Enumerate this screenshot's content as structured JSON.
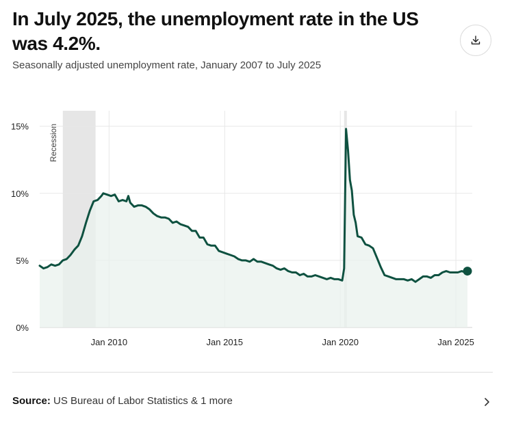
{
  "title": "In July 2025, the unemployment rate in the US was 4.2%.",
  "subtitle": "Seasonally adjusted unemployment rate, January 2007 to July 2025",
  "download_icon": "download-icon",
  "source": {
    "label": "Source:",
    "text": "US Bureau of Labor Statistics & 1 more",
    "chevron_icon": "chevron-right-icon"
  },
  "colors": {
    "line": "#0e5140",
    "area": "#e9f1ee",
    "recession": "#e6e6e6",
    "grid": "#e7e7e7"
  },
  "chart_data": {
    "type": "area",
    "title": "In July 2025, the unemployment rate in the US was 4.2%.",
    "subtitle": "Seasonally adjusted unemployment rate, January 2007 to July 2025",
    "xlabel": "",
    "ylabel": "",
    "xlim": [
      "2007-01",
      "2025-07"
    ],
    "ylim": [
      0,
      16
    ],
    "y_ticks": [
      0,
      5,
      10,
      15
    ],
    "y_tick_labels": [
      "0%",
      "5%",
      "10%",
      "15%"
    ],
    "x_ticks": [
      "2010-01",
      "2015-01",
      "2020-01",
      "2025-01"
    ],
    "x_tick_labels": [
      "Jan 2010",
      "Jan 2015",
      "Jan 2020",
      "Jan 2025"
    ],
    "grid": true,
    "recessions": [
      {
        "label": "Recession",
        "start": "2008-01",
        "end": "2009-06"
      },
      {
        "label": "",
        "start": "2020-03",
        "end": "2020-04"
      }
    ],
    "last_point": {
      "x": "2025-07",
      "y": 4.2
    },
    "series": [
      {
        "values": [
          [
            "2007-01",
            4.6
          ],
          [
            "2007-03",
            4.4
          ],
          [
            "2007-05",
            4.5
          ],
          [
            "2007-07",
            4.7
          ],
          [
            "2007-09",
            4.6
          ],
          [
            "2007-11",
            4.7
          ],
          [
            "2008-01",
            5.0
          ],
          [
            "2008-03",
            5.1
          ],
          [
            "2008-05",
            5.4
          ],
          [
            "2008-07",
            5.8
          ],
          [
            "2008-09",
            6.1
          ],
          [
            "2008-11",
            6.8
          ],
          [
            "2009-01",
            7.8
          ],
          [
            "2009-03",
            8.7
          ],
          [
            "2009-05",
            9.4
          ],
          [
            "2009-07",
            9.5
          ],
          [
            "2009-09",
            9.8
          ],
          [
            "2009-10",
            10.0
          ],
          [
            "2009-12",
            9.9
          ],
          [
            "2010-02",
            9.8
          ],
          [
            "2010-04",
            9.9
          ],
          [
            "2010-06",
            9.4
          ],
          [
            "2010-08",
            9.5
          ],
          [
            "2010-10",
            9.4
          ],
          [
            "2010-11",
            9.8
          ],
          [
            "2010-12",
            9.3
          ],
          [
            "2011-02",
            9.0
          ],
          [
            "2011-04",
            9.1
          ],
          [
            "2011-06",
            9.1
          ],
          [
            "2011-08",
            9.0
          ],
          [
            "2011-10",
            8.8
          ],
          [
            "2011-12",
            8.5
          ],
          [
            "2012-02",
            8.3
          ],
          [
            "2012-04",
            8.2
          ],
          [
            "2012-06",
            8.2
          ],
          [
            "2012-08",
            8.1
          ],
          [
            "2012-10",
            7.8
          ],
          [
            "2012-12",
            7.9
          ],
          [
            "2013-02",
            7.7
          ],
          [
            "2013-04",
            7.6
          ],
          [
            "2013-06",
            7.5
          ],
          [
            "2013-08",
            7.2
          ],
          [
            "2013-10",
            7.2
          ],
          [
            "2013-12",
            6.7
          ],
          [
            "2014-02",
            6.7
          ],
          [
            "2014-04",
            6.2
          ],
          [
            "2014-06",
            6.1
          ],
          [
            "2014-08",
            6.1
          ],
          [
            "2014-10",
            5.7
          ],
          [
            "2014-12",
            5.6
          ],
          [
            "2015-02",
            5.5
          ],
          [
            "2015-04",
            5.4
          ],
          [
            "2015-06",
            5.3
          ],
          [
            "2015-08",
            5.1
          ],
          [
            "2015-10",
            5.0
          ],
          [
            "2015-12",
            5.0
          ],
          [
            "2016-02",
            4.9
          ],
          [
            "2016-04",
            5.1
          ],
          [
            "2016-06",
            4.9
          ],
          [
            "2016-08",
            4.9
          ],
          [
            "2016-10",
            4.8
          ],
          [
            "2016-12",
            4.7
          ],
          [
            "2017-02",
            4.6
          ],
          [
            "2017-04",
            4.4
          ],
          [
            "2017-06",
            4.3
          ],
          [
            "2017-08",
            4.4
          ],
          [
            "2017-10",
            4.2
          ],
          [
            "2017-12",
            4.1
          ],
          [
            "2018-02",
            4.1
          ],
          [
            "2018-04",
            3.9
          ],
          [
            "2018-06",
            4.0
          ],
          [
            "2018-08",
            3.8
          ],
          [
            "2018-10",
            3.8
          ],
          [
            "2018-12",
            3.9
          ],
          [
            "2019-02",
            3.8
          ],
          [
            "2019-04",
            3.7
          ],
          [
            "2019-06",
            3.6
          ],
          [
            "2019-08",
            3.7
          ],
          [
            "2019-10",
            3.6
          ],
          [
            "2019-12",
            3.6
          ],
          [
            "2020-02",
            3.5
          ],
          [
            "2020-03",
            4.4
          ],
          [
            "2020-04",
            14.8
          ],
          [
            "2020-05",
            13.2
          ],
          [
            "2020-06",
            11.0
          ],
          [
            "2020-07",
            10.2
          ],
          [
            "2020-08",
            8.4
          ],
          [
            "2020-09",
            7.8
          ],
          [
            "2020-10",
            6.8
          ],
          [
            "2020-12",
            6.7
          ],
          [
            "2021-02",
            6.2
          ],
          [
            "2021-04",
            6.1
          ],
          [
            "2021-06",
            5.9
          ],
          [
            "2021-08",
            5.2
          ],
          [
            "2021-10",
            4.5
          ],
          [
            "2021-12",
            3.9
          ],
          [
            "2022-02",
            3.8
          ],
          [
            "2022-04",
            3.7
          ],
          [
            "2022-06",
            3.6
          ],
          [
            "2022-08",
            3.6
          ],
          [
            "2022-10",
            3.6
          ],
          [
            "2022-12",
            3.5
          ],
          [
            "2023-02",
            3.6
          ],
          [
            "2023-04",
            3.4
          ],
          [
            "2023-06",
            3.6
          ],
          [
            "2023-08",
            3.8
          ],
          [
            "2023-10",
            3.8
          ],
          [
            "2023-12",
            3.7
          ],
          [
            "2024-02",
            3.9
          ],
          [
            "2024-04",
            3.9
          ],
          [
            "2024-06",
            4.1
          ],
          [
            "2024-08",
            4.2
          ],
          [
            "2024-10",
            4.1
          ],
          [
            "2024-12",
            4.1
          ],
          [
            "2025-02",
            4.1
          ],
          [
            "2025-04",
            4.2
          ],
          [
            "2025-06",
            4.1
          ],
          [
            "2025-07",
            4.2
          ]
        ]
      }
    ]
  }
}
